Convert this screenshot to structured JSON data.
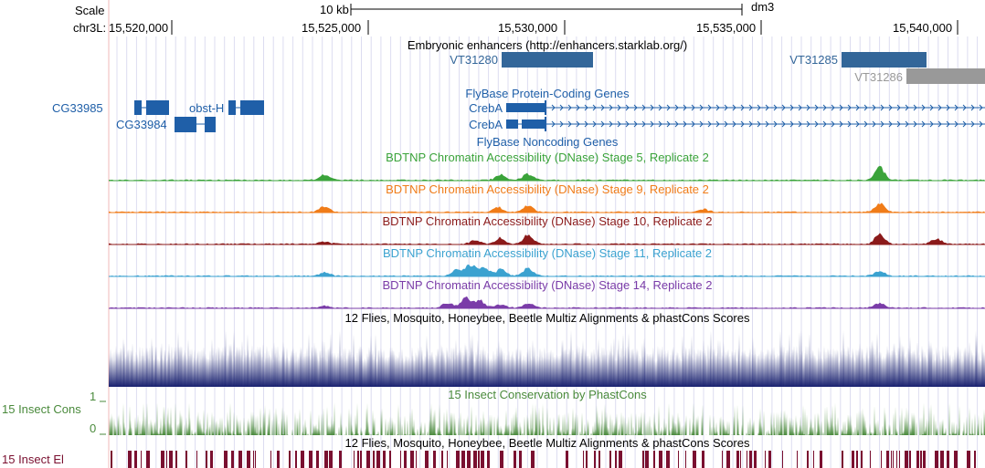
{
  "ruler": {
    "scale_label": "Scale",
    "chrom_label": "chr3L:",
    "scale_bar_label": "10 kb",
    "assembly": "dm3",
    "ticks": [
      "15,520,000",
      "15,525,000",
      "15,530,000",
      "15,535,000",
      "15,540,000"
    ]
  },
  "tracks": {
    "enhancers": {
      "title": "Embryonic enhancers (http://enhancers.starklab.org/)",
      "items": [
        {
          "name": "VT31280",
          "color": "#336699"
        },
        {
          "name": "VT31285",
          "color": "#336699"
        },
        {
          "name": "VT31286",
          "color": "#999999"
        }
      ]
    },
    "protein_genes": {
      "title": "FlyBase Protein-Coding Genes",
      "genes": [
        "CG33985",
        "CG33984",
        "obst-H",
        "CrebA",
        "CrebA"
      ],
      "color": "#1f5fa8"
    },
    "noncoding_genes": {
      "title": "FlyBase Noncoding Genes"
    },
    "dnase": [
      {
        "title": "BDTNP Chromatin Accessibility (DNase) Stage 5, Replicate 2",
        "color": "#3aa33a"
      },
      {
        "title": "BDTNP Chromatin Accessibility (DNase) Stage 9, Replicate 2",
        "color": "#f07c18"
      },
      {
        "title": "BDTNP Chromatin Accessibility (DNase) Stage 10, Replicate 2",
        "color": "#8b1a1a"
      },
      {
        "title": "BDTNP Chromatin Accessibility (DNase) Stage 11, Replicate 2",
        "color": "#3ba2d0"
      },
      {
        "title": "BDTNP Chromatin Accessibility (DNase) Stage 14, Replicate 2",
        "color": "#7a3ca8"
      }
    ],
    "multiz": {
      "title": "12 Flies, Mosquito, Honeybee, Beetle Multiz Alignments & phastCons Scores",
      "color": "#1a2270"
    },
    "phastcons": {
      "title": "15 Insect Conservation by PhastCons",
      "side_label": "15 Insect Cons",
      "y_max_label": "1",
      "y_min_label": "0",
      "color": "#4a8a3c"
    },
    "elements": {
      "title": "12 Flies, Mosquito, Honeybee, Beetle Multiz Alignments & phastCons Scores",
      "side_label": "15 Insect El",
      "color": "#7a1030"
    }
  }
}
